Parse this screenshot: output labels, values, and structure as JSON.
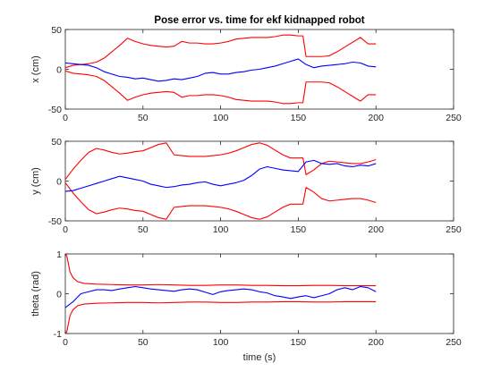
{
  "chart_data": [
    {
      "type": "line",
      "title": "Pose error vs. time for ekf kidnapped robot",
      "xlabel": "",
      "ylabel": "x (cm)",
      "xlim": [
        0,
        250
      ],
      "ylim": [
        -50,
        50
      ],
      "xticks": [
        0,
        50,
        100,
        150,
        200,
        250
      ],
      "yticks": [
        -50,
        0,
        50
      ],
      "grid": false,
      "series": [
        {
          "color": "#ff0000",
          "x": [
            0,
            5,
            10,
            15,
            20,
            25,
            30,
            35,
            40,
            45,
            50,
            55,
            60,
            65,
            70,
            75,
            80,
            85,
            90,
            95,
            100,
            105,
            110,
            115,
            120,
            125,
            130,
            135,
            140,
            145,
            150,
            153,
            155,
            160,
            165,
            170,
            175,
            180,
            185,
            190,
            195,
            200
          ],
          "y": [
            2,
            5,
            6,
            7,
            9,
            14,
            22,
            30,
            39,
            35,
            32,
            30,
            29,
            28,
            29,
            35,
            33,
            33,
            32,
            32,
            33,
            35,
            38,
            39,
            40,
            40,
            40,
            41,
            43,
            43,
            42,
            42,
            16,
            16,
            16,
            17,
            22,
            28,
            34,
            40,
            32,
            32
          ]
        },
        {
          "color": "#ff0000",
          "x": [
            0,
            5,
            10,
            15,
            20,
            25,
            30,
            35,
            40,
            45,
            50,
            55,
            60,
            65,
            70,
            75,
            80,
            85,
            90,
            95,
            100,
            105,
            110,
            115,
            120,
            125,
            130,
            135,
            140,
            145,
            150,
            153,
            155,
            160,
            165,
            170,
            175,
            180,
            185,
            190,
            195,
            200
          ],
          "y": [
            -2,
            -5,
            -6,
            -7,
            -9,
            -14,
            -22,
            -30,
            -39,
            -35,
            -32,
            -30,
            -29,
            -28,
            -29,
            -35,
            -33,
            -33,
            -32,
            -32,
            -33,
            -35,
            -38,
            -39,
            -40,
            -40,
            -40,
            -41,
            -43,
            -43,
            -42,
            -42,
            -16,
            -16,
            -16,
            -17,
            -22,
            -28,
            -34,
            -40,
            -32,
            -32
          ]
        },
        {
          "color": "#0000ff",
          "x": [
            0,
            5,
            10,
            15,
            20,
            25,
            30,
            35,
            40,
            45,
            50,
            55,
            60,
            65,
            70,
            75,
            80,
            85,
            90,
            95,
            100,
            105,
            110,
            115,
            120,
            125,
            130,
            135,
            140,
            145,
            150,
            155,
            160,
            165,
            170,
            175,
            180,
            185,
            190,
            195,
            200
          ],
          "y": [
            8,
            7,
            6,
            5,
            2,
            -3,
            -6,
            -9,
            -10,
            -12,
            -11,
            -13,
            -15,
            -14,
            -12,
            -13,
            -11,
            -9,
            -5,
            -4,
            -6,
            -6,
            -4,
            -3,
            -1,
            0,
            2,
            4,
            7,
            10,
            13,
            6,
            2,
            4,
            5,
            6,
            7,
            9,
            8,
            4,
            3
          ]
        }
      ]
    },
    {
      "type": "line",
      "title": "",
      "xlabel": "",
      "ylabel": "y (cm)",
      "xlim": [
        0,
        250
      ],
      "ylim": [
        -50,
        50
      ],
      "xticks": [
        0,
        50,
        100,
        150,
        200,
        250
      ],
      "yticks": [
        -50,
        0,
        50
      ],
      "grid": false,
      "series": [
        {
          "color": "#ff0000",
          "x": [
            0,
            5,
            10,
            15,
            20,
            25,
            30,
            35,
            40,
            45,
            50,
            55,
            60,
            65,
            70,
            75,
            80,
            85,
            90,
            95,
            100,
            105,
            110,
            115,
            120,
            125,
            130,
            135,
            140,
            145,
            150,
            153,
            155,
            160,
            165,
            170,
            175,
            180,
            185,
            190,
            195,
            200
          ],
          "y": [
            2,
            15,
            26,
            36,
            41,
            39,
            36,
            34,
            35,
            37,
            38,
            42,
            46,
            48,
            33,
            32,
            31,
            31,
            31,
            32,
            33,
            35,
            38,
            42,
            46,
            48,
            45,
            39,
            33,
            29,
            29,
            29,
            8,
            14,
            22,
            25,
            24,
            23,
            22,
            22,
            24,
            27
          ]
        },
        {
          "color": "#ff0000",
          "x": [
            0,
            5,
            10,
            15,
            20,
            25,
            30,
            35,
            40,
            45,
            50,
            55,
            60,
            65,
            70,
            75,
            80,
            85,
            90,
            95,
            100,
            105,
            110,
            115,
            120,
            125,
            130,
            135,
            140,
            145,
            150,
            153,
            155,
            160,
            165,
            170,
            175,
            180,
            185,
            190,
            195,
            200
          ],
          "y": [
            -2,
            -15,
            -26,
            -36,
            -41,
            -39,
            -36,
            -34,
            -35,
            -37,
            -38,
            -42,
            -46,
            -48,
            -33,
            -32,
            -31,
            -31,
            -31,
            -32,
            -33,
            -35,
            -38,
            -42,
            -46,
            -48,
            -45,
            -39,
            -33,
            -29,
            -29,
            -29,
            -8,
            -14,
            -22,
            -25,
            -24,
            -23,
            -22,
            -22,
            -24,
            -27
          ]
        },
        {
          "color": "#0000ff",
          "x": [
            0,
            5,
            10,
            15,
            20,
            25,
            30,
            35,
            40,
            45,
            50,
            55,
            60,
            65,
            70,
            75,
            80,
            85,
            90,
            95,
            100,
            105,
            110,
            115,
            120,
            125,
            130,
            135,
            140,
            145,
            150,
            155,
            160,
            165,
            170,
            175,
            180,
            185,
            190,
            195,
            200
          ],
          "y": [
            -13,
            -12,
            -9,
            -6,
            -3,
            0,
            3,
            6,
            4,
            2,
            0,
            -4,
            -6,
            -8,
            -7,
            -5,
            -4,
            -2,
            -1,
            -4,
            -6,
            -4,
            -2,
            1,
            7,
            15,
            18,
            16,
            14,
            13,
            12,
            24,
            26,
            22,
            21,
            22,
            19,
            18,
            20,
            19,
            22
          ]
        }
      ]
    },
    {
      "type": "line",
      "title": "",
      "xlabel": "time (s)",
      "ylabel": "theta (rad)",
      "xlim": [
        0,
        250
      ],
      "ylim": [
        -1,
        1
      ],
      "xticks": [
        0,
        50,
        100,
        150,
        200,
        250
      ],
      "yticks": [
        -1,
        0,
        1
      ],
      "grid": false,
      "series": [
        {
          "color": "#ff0000",
          "x": [
            0,
            1,
            2,
            3,
            5,
            8,
            12,
            20,
            30,
            40,
            50,
            60,
            70,
            80,
            90,
            100,
            110,
            120,
            130,
            140,
            150,
            160,
            170,
            180,
            190,
            200
          ],
          "y": [
            1,
            0.95,
            0.75,
            0.55,
            0.4,
            0.3,
            0.26,
            0.24,
            0.23,
            0.22,
            0.22,
            0.23,
            0.22,
            0.21,
            0.21,
            0.22,
            0.22,
            0.21,
            0.21,
            0.2,
            0.2,
            0.21,
            0.21,
            0.2,
            0.2,
            0.2
          ]
        },
        {
          "color": "#ff0000",
          "x": [
            0,
            1,
            2,
            3,
            5,
            8,
            12,
            20,
            30,
            40,
            50,
            60,
            70,
            80,
            90,
            100,
            110,
            120,
            130,
            140,
            150,
            160,
            170,
            180,
            190,
            200
          ],
          "y": [
            -1,
            -0.95,
            -0.75,
            -0.55,
            -0.4,
            -0.3,
            -0.26,
            -0.24,
            -0.23,
            -0.22,
            -0.22,
            -0.23,
            -0.22,
            -0.21,
            -0.21,
            -0.22,
            -0.22,
            -0.21,
            -0.21,
            -0.2,
            -0.2,
            -0.21,
            -0.21,
            -0.2,
            -0.2,
            -0.2
          ]
        },
        {
          "color": "#0000ff",
          "x": [
            0,
            5,
            10,
            15,
            20,
            25,
            30,
            35,
            40,
            45,
            50,
            55,
            60,
            65,
            70,
            75,
            80,
            85,
            90,
            95,
            100,
            105,
            110,
            115,
            120,
            125,
            130,
            135,
            140,
            145,
            150,
            155,
            160,
            165,
            170,
            175,
            180,
            185,
            190,
            195,
            200
          ],
          "y": [
            -0.35,
            -0.2,
            0,
            0.05,
            0.1,
            0.1,
            0.08,
            0.12,
            0.15,
            0.18,
            0.15,
            0.12,
            0.1,
            0.08,
            0.06,
            0.1,
            0.12,
            0.1,
            0.04,
            -0.02,
            0.05,
            0.08,
            0.1,
            0.12,
            0.1,
            0.05,
            0.02,
            -0.05,
            -0.08,
            -0.12,
            -0.08,
            -0.05,
            -0.1,
            -0.05,
            0.0,
            0.1,
            0.15,
            0.1,
            0.18,
            0.15,
            0.05
          ]
        }
      ]
    }
  ]
}
